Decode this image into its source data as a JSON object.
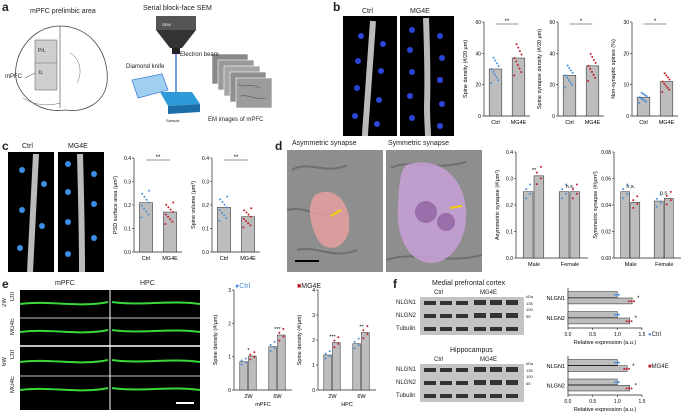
{
  "panels": {
    "a": {
      "label": "a",
      "title": "mPFC prelimbic area",
      "region_label": "mPFC",
      "sub_labels": [
        "PrL",
        "IL"
      ],
      "sem_title": "Serial block-face SEM",
      "sem_parts": [
        "SEM",
        "Electron beam",
        "Diamond knife",
        "Sample",
        "EM images of mPFC"
      ]
    },
    "b": {
      "label": "b",
      "conditions": [
        "Ctrl",
        "MG4E"
      ]
    },
    "c": {
      "label": "c",
      "conditions": [
        "Ctrl",
        "MG4E"
      ]
    },
    "d": {
      "label": "d",
      "image_labels": [
        "Asymmetric synapse",
        "Symmetric synapse"
      ]
    },
    "e": {
      "label": "e",
      "region_labels": [
        "mPFC",
        "HPC"
      ],
      "row_labels": [
        "Ctrl",
        "MG4E",
        "Ctrl",
        "MG4E"
      ],
      "age_labels": [
        "2W",
        "6W"
      ]
    },
    "f": {
      "label": "f",
      "sections": [
        "Medial prefrontal cortex",
        "Hippocampus"
      ],
      "blot_rows": [
        "NLGN1",
        "NLGN2",
        "Tubulin"
      ],
      "kda": [
        "kDa",
        "135",
        "100",
        "55"
      ],
      "lane_groups": [
        "Ctrl",
        "MG4E"
      ],
      "legend": [
        "Ctrl",
        "MG4E"
      ]
    }
  },
  "colors": {
    "ctrl": "#4a90d9",
    "mg4e": "#c0202a",
    "bar": "#bdbdbd",
    "spine_blue": "#2a45d8",
    "em_gray": "#9a9a9a",
    "red_syn": "#e8a0a0",
    "purple_syn": "#c8a0d8",
    "fluor": "#39d839"
  },
  "chart_data": [
    {
      "id": "b1",
      "type": "bar",
      "categories": [
        "Ctrl",
        "MG4E"
      ],
      "values": [
        30,
        37
      ],
      "ylabel": "Spine density (#/20 μm)",
      "ylim": [
        0,
        60
      ],
      "yticks": [
        "0",
        "20",
        "40",
        "60"
      ],
      "sig": "**"
    },
    {
      "id": "b2",
      "type": "bar",
      "categories": [
        "Ctrl",
        "MG4E"
      ],
      "values": [
        26,
        32
      ],
      "ylabel": "Spine synapse density (#/20 μm)",
      "ylim": [
        0,
        60
      ],
      "yticks": [
        "0",
        "20",
        "40",
        "60"
      ],
      "sig": "*"
    },
    {
      "id": "b3",
      "type": "bar",
      "categories": [
        "Ctrl",
        "MG4E"
      ],
      "values": [
        6,
        11
      ],
      "ylabel": "Non-synaptic spines (%)",
      "ylim": [
        0,
        30
      ],
      "yticks": [
        "0",
        "10",
        "20",
        "30"
      ],
      "sig": "*"
    },
    {
      "id": "c1",
      "type": "bar",
      "categories": [
        "Ctrl",
        "MG4E"
      ],
      "values": [
        0.21,
        0.17
      ],
      "ylabel": "PSD surface area (μm²)",
      "ylim": [
        0,
        0.4
      ],
      "yticks": [
        "0.0",
        "0.1",
        "0.2",
        "0.3",
        "0.4"
      ],
      "sig": "**"
    },
    {
      "id": "c2",
      "type": "bar",
      "categories": [
        "Ctrl",
        "MG4E"
      ],
      "values": [
        0.19,
        0.15
      ],
      "ylabel": "Spine volume (μm³)",
      "ylim": [
        0,
        0.4
      ],
      "yticks": [
        "0.0",
        "0.1",
        "0.2",
        "0.3",
        "0.4"
      ],
      "sig": "**"
    },
    {
      "id": "d1",
      "type": "bar",
      "categories": [
        "Male",
        "Female"
      ],
      "series": [
        {
          "name": "Ctrl",
          "values": [
            0.25,
            0.25
          ]
        },
        {
          "name": "MG4E",
          "values": [
            0.31,
            0.25
          ]
        }
      ],
      "ylabel": "Asymmetric synapse (#/μm²)",
      "ylim": [
        0,
        0.4
      ],
      "yticks": [
        "0.0",
        "0.1",
        "0.2",
        "0.3",
        "0.4"
      ],
      "sig": [
        "**",
        "n.s."
      ]
    },
    {
      "id": "d2",
      "type": "bar",
      "categories": [
        "Male",
        "Female"
      ],
      "series": [
        {
          "name": "Ctrl",
          "values": [
            0.05,
            0.043
          ]
        },
        {
          "name": "MG4E",
          "values": [
            0.042,
            0.045
          ]
        }
      ],
      "ylabel": "Symmetric synapse (#/μm²)",
      "ylim": [
        0,
        0.08
      ],
      "yticks": [
        "0.00",
        "0.02",
        "0.04",
        "0.06",
        "0.08"
      ],
      "sig": [
        "n.s.",
        "n.s."
      ]
    },
    {
      "id": "e1",
      "type": "bar",
      "categories": [
        "2W",
        "6W"
      ],
      "series": [
        {
          "name": "Ctrl",
          "values": [
            0.85,
            1.3
          ]
        },
        {
          "name": "MG4E",
          "values": [
            1.02,
            1.65
          ]
        }
      ],
      "ylabel": "Spine density (#/μm)",
      "xlabel": "mPFC",
      "ylim": [
        0,
        3
      ],
      "yticks": [
        "0",
        "1",
        "2",
        "3"
      ],
      "sig": [
        "*",
        "***"
      ]
    },
    {
      "id": "e2",
      "type": "bar",
      "categories": [
        "2W",
        "6W"
      ],
      "series": [
        {
          "name": "Ctrl",
          "values": [
            1.4,
            1.85
          ]
        },
        {
          "name": "MG4E",
          "values": [
            1.9,
            2.3
          ]
        }
      ],
      "ylabel": "Spine density (#/μm)",
      "xlabel": "HPC",
      "ylim": [
        0,
        4
      ],
      "yticks": [
        "0",
        "1",
        "2",
        "3",
        "4"
      ],
      "sig": [
        "***",
        "**"
      ]
    },
    {
      "id": "f1",
      "type": "bar",
      "orientation": "horizontal",
      "categories": [
        "NLGN1",
        "NLGN2"
      ],
      "series": [
        {
          "name": "Ctrl",
          "values": [
            1.0,
            1.0
          ]
        },
        {
          "name": "MG4E",
          "values": [
            1.3,
            1.25
          ]
        }
      ],
      "xlabel": "Relative expression (a.u.)",
      "xlim": [
        0,
        1.5
      ],
      "xticks": [
        "0.0",
        "0.5",
        "1.0",
        "1.5"
      ],
      "sig": [
        "*",
        "*"
      ]
    },
    {
      "id": "f2",
      "type": "bar",
      "orientation": "horizontal",
      "categories": [
        "NLGN1",
        "NLGN2"
      ],
      "series": [
        {
          "name": "Ctrl",
          "values": [
            1.0,
            1.0
          ]
        },
        {
          "name": "MG4E",
          "values": [
            1.2,
            1.25
          ]
        }
      ],
      "xlabel": "Relative expression (a.u.)",
      "xlim": [
        0,
        1.5
      ],
      "xticks": [
        "0.0",
        "0.5",
        "1.0",
        "1.5"
      ],
      "sig": [
        "*",
        "*"
      ]
    }
  ]
}
